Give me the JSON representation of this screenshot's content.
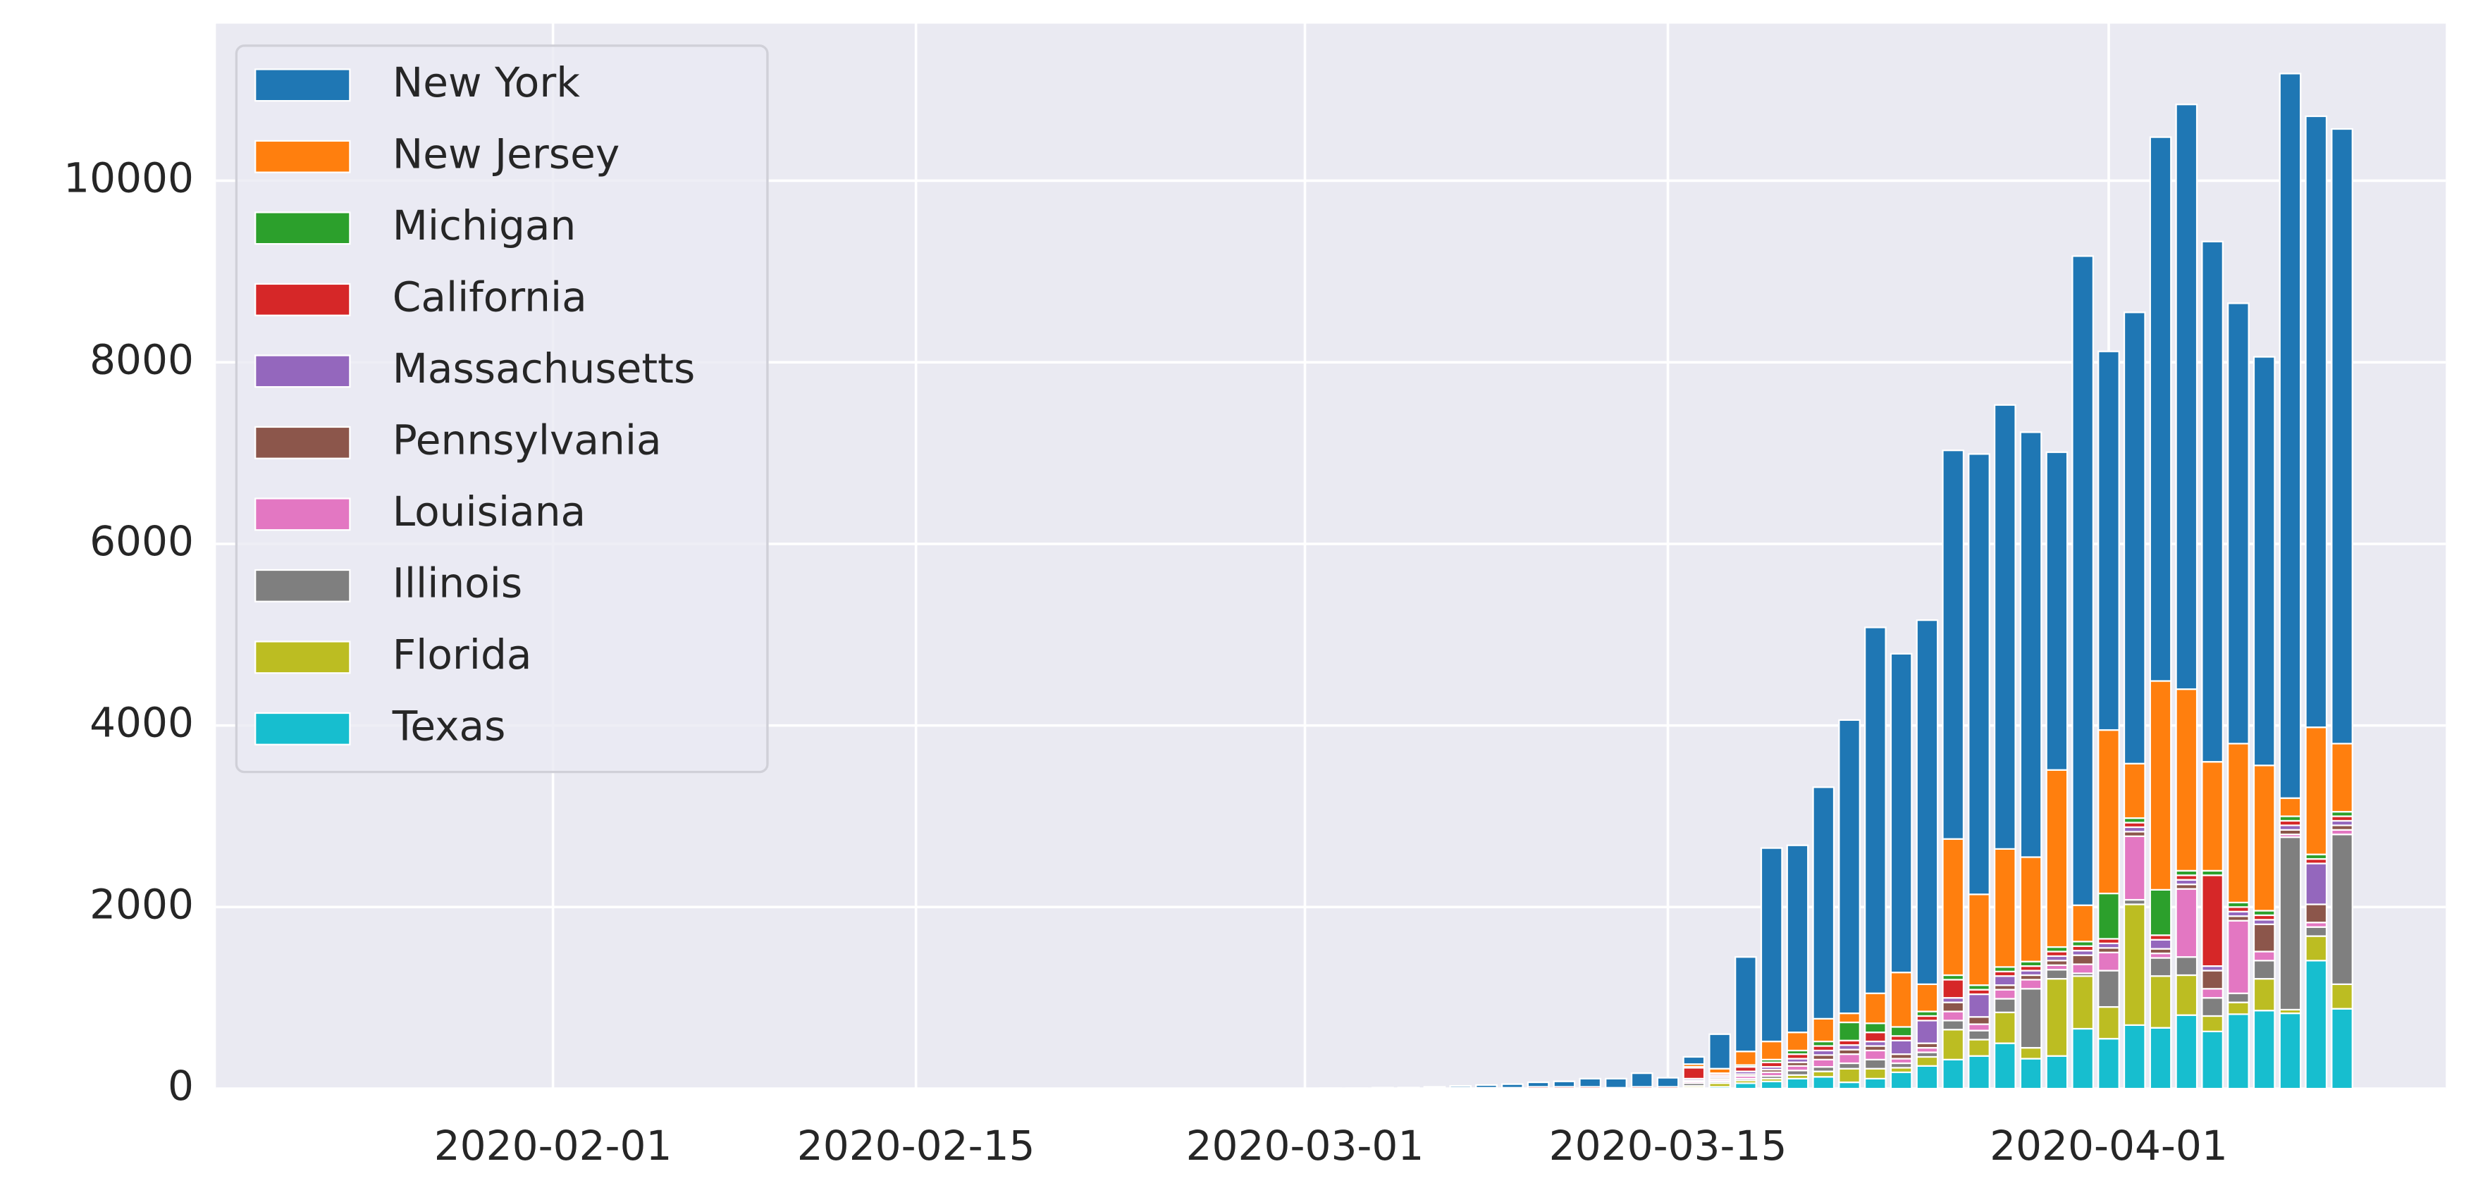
{
  "chart_data": {
    "type": "bar",
    "stacked": true,
    "x": [
      "2020-03-01",
      "2020-03-02",
      "2020-03-03",
      "2020-03-04",
      "2020-03-05",
      "2020-03-06",
      "2020-03-07",
      "2020-03-08",
      "2020-03-09",
      "2020-03-10",
      "2020-03-11",
      "2020-03-12",
      "2020-03-13",
      "2020-03-14",
      "2020-03-15",
      "2020-03-16",
      "2020-03-17",
      "2020-03-18",
      "2020-03-19",
      "2020-03-20",
      "2020-03-21",
      "2020-03-22",
      "2020-03-23",
      "2020-03-24",
      "2020-03-25",
      "2020-03-26",
      "2020-03-27",
      "2020-03-28",
      "2020-03-29",
      "2020-03-30",
      "2020-03-31",
      "2020-04-01",
      "2020-04-02",
      "2020-04-03",
      "2020-04-04",
      "2020-04-05",
      "2020-04-06",
      "2020-04-07",
      "2020-04-08",
      "2020-04-09",
      "2020-04-10"
    ],
    "series": [
      {
        "name": "New York",
        "color": "#1f77b4",
        "values": [
          0,
          0,
          0,
          1,
          2,
          10,
          20,
          30,
          40,
          50,
          60,
          90,
          100,
          150,
          100,
          80,
          380,
          1040,
          2130,
          2060,
          2550,
          3230,
          4030,
          3510,
          4010,
          4280,
          4850,
          4890,
          4680,
          3500,
          7150,
          4170,
          4970,
          5990,
          6440,
          5730,
          4850,
          4500,
          7980,
          6730,
          6770
        ]
      },
      {
        "name": "New Jersey",
        "color": "#ff7f0e",
        "values": [
          0,
          0,
          0,
          0,
          0,
          0,
          0,
          0,
          0,
          0,
          0,
          0,
          0,
          0,
          0,
          30,
          50,
          150,
          200,
          200,
          250,
          100,
          330,
          600,
          300,
          1500,
          1000,
          1300,
          1150,
          1950,
          400,
          1800,
          600,
          2300,
          2000,
          1200,
          1750,
          1600,
          200,
          1400,
          750
        ]
      },
      {
        "name": "Michigan",
        "color": "#2ca02c",
        "values": [
          0,
          0,
          0,
          0,
          0,
          0,
          0,
          0,
          0,
          0,
          0,
          0,
          0,
          0,
          0,
          10,
          10,
          20,
          30,
          40,
          50,
          200,
          100,
          100,
          50,
          50,
          50,
          50,
          50,
          50,
          50,
          500,
          50,
          500,
          50,
          50,
          50,
          50,
          50,
          50,
          50
        ]
      },
      {
        "name": "California",
        "color": "#d62728",
        "values": [
          2,
          5,
          5,
          10,
          10,
          10,
          10,
          10,
          10,
          20,
          20,
          20,
          10,
          20,
          20,
          120,
          20,
          50,
          50,
          50,
          50,
          50,
          100,
          50,
          50,
          200,
          50,
          50,
          50,
          50,
          50,
          50,
          50,
          50,
          50,
          1000,
          50,
          50,
          50,
          50,
          50
        ]
      },
      {
        "name": "Massachusetts",
        "color": "#9467bd",
        "values": [
          0,
          0,
          0,
          0,
          0,
          0,
          0,
          0,
          0,
          0,
          0,
          0,
          0,
          0,
          0,
          20,
          20,
          30,
          30,
          40,
          50,
          50,
          50,
          150,
          250,
          50,
          250,
          100,
          50,
          50,
          50,
          50,
          50,
          100,
          50,
          50,
          50,
          50,
          50,
          450,
          50
        ]
      },
      {
        "name": "Pennsylvania",
        "color": "#8c564b",
        "values": [
          0,
          0,
          0,
          0,
          0,
          0,
          0,
          0,
          0,
          0,
          0,
          0,
          0,
          0,
          0,
          10,
          20,
          20,
          30,
          40,
          50,
          50,
          50,
          50,
          50,
          100,
          80,
          50,
          50,
          50,
          100,
          50,
          50,
          50,
          50,
          200,
          50,
          300,
          50,
          200,
          50
        ]
      },
      {
        "name": "Louisiana",
        "color": "#e377c2",
        "values": [
          0,
          0,
          0,
          0,
          0,
          0,
          0,
          0,
          0,
          0,
          0,
          0,
          0,
          0,
          0,
          20,
          20,
          30,
          40,
          50,
          80,
          100,
          100,
          50,
          50,
          100,
          70,
          100,
          100,
          50,
          100,
          200,
          700,
          50,
          750,
          100,
          800,
          100,
          30,
          50,
          50
        ]
      },
      {
        "name": "Illinois",
        "color": "#7f7f7f",
        "values": [
          0,
          0,
          0,
          0,
          0,
          0,
          0,
          0,
          0,
          0,
          0,
          0,
          0,
          0,
          0,
          30,
          20,
          20,
          30,
          50,
          50,
          60,
          100,
          50,
          50,
          100,
          100,
          150,
          650,
          100,
          30,
          400,
          50,
          200,
          200,
          200,
          100,
          200,
          1900,
          100,
          1650
        ]
      },
      {
        "name": "Florida",
        "color": "#bcbd22",
        "values": [
          0,
          0,
          0,
          0,
          0,
          0,
          0,
          0,
          0,
          0,
          0,
          0,
          0,
          0,
          0,
          20,
          40,
          30,
          30,
          40,
          60,
          150,
          110,
          50,
          100,
          330,
          180,
          340,
          120,
          850,
          580,
          350,
          1330,
          570,
          440,
          170,
          130,
          350,
          40,
          270,
          270
        ]
      },
      {
        "name": "Texas",
        "color": "#17becf",
        "values": [
          0,
          0,
          0,
          0,
          0,
          0,
          0,
          0,
          0,
          0,
          0,
          0,
          0,
          0,
          0,
          10,
          20,
          60,
          80,
          110,
          130,
          70,
          110,
          180,
          250,
          320,
          360,
          500,
          330,
          360,
          660,
          550,
          700,
          670,
          810,
          630,
          820,
          860,
          830,
          1410,
          880
        ]
      }
    ],
    "xlim": [
      "2020-01-19",
      "2020-04-14"
    ],
    "xticks": [
      "2020-02-01",
      "2020-02-15",
      "2020-03-01",
      "2020-03-15",
      "2020-04-01"
    ],
    "ylim": [
      0,
      11730
    ],
    "yticks": [
      0,
      2000,
      4000,
      6000,
      8000,
      10000
    ],
    "grid": true,
    "legend": "upper left"
  }
}
